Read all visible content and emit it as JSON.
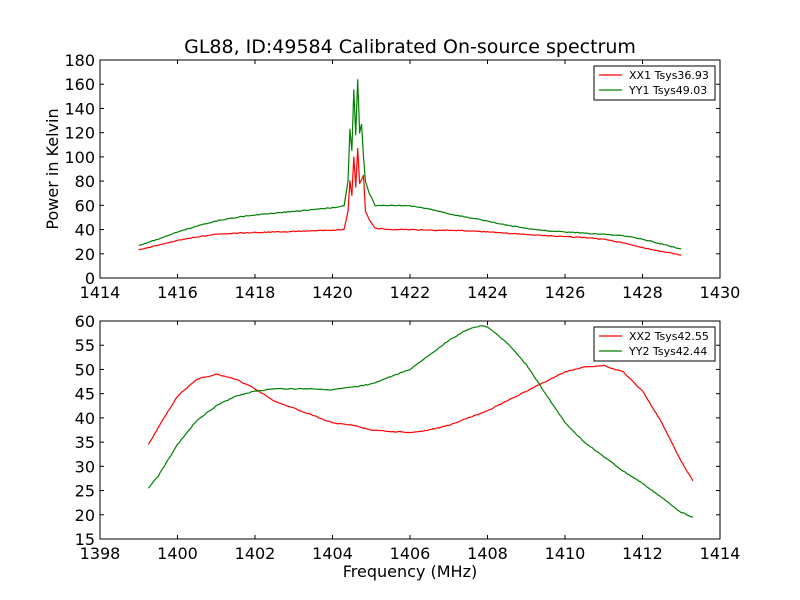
{
  "chart_data": [
    {
      "type": "line",
      "title": "GL88, ID:49584 Calibrated On-source spectrum",
      "xlabel": "",
      "ylabel": "Power in Kelvin",
      "xlim": [
        1414,
        1430
      ],
      "ylim": [
        0,
        180
      ],
      "xticks": [
        "1414",
        "1416",
        "1418",
        "1420",
        "1422",
        "1424",
        "1426",
        "1428",
        "1430"
      ],
      "yticks": [
        "0",
        "20",
        "40",
        "60",
        "80",
        "100",
        "120",
        "140",
        "160",
        "180"
      ],
      "grid": false,
      "legend_position": "top-right",
      "series": [
        {
          "name": "XX1 Tsys36.93",
          "color": "#ff0000",
          "points": [
            [
              1415.0,
              23
            ],
            [
              1415.5,
              27
            ],
            [
              1416.0,
              31
            ],
            [
              1416.5,
              34
            ],
            [
              1417.0,
              36
            ],
            [
              1417.5,
              37
            ],
            [
              1418.0,
              37.5
            ],
            [
              1418.5,
              38
            ],
            [
              1419.0,
              38.5
            ],
            [
              1419.5,
              39
            ],
            [
              1420.0,
              39.5
            ],
            [
              1420.3,
              40
            ],
            [
              1420.4,
              55
            ],
            [
              1420.45,
              80
            ],
            [
              1420.5,
              68
            ],
            [
              1420.55,
              100
            ],
            [
              1420.6,
              75
            ],
            [
              1420.65,
              107
            ],
            [
              1420.7,
              78
            ],
            [
              1420.8,
              85
            ],
            [
              1420.85,
              55
            ],
            [
              1420.95,
              48
            ],
            [
              1421.1,
              41
            ],
            [
              1421.5,
              40
            ],
            [
              1422.0,
              40
            ],
            [
              1422.5,
              39.5
            ],
            [
              1423.0,
              39.5
            ],
            [
              1423.5,
              39
            ],
            [
              1424.0,
              38
            ],
            [
              1424.5,
              37
            ],
            [
              1425.0,
              36
            ],
            [
              1425.5,
              35
            ],
            [
              1426.0,
              34
            ],
            [
              1426.5,
              33.5
            ],
            [
              1427.0,
              32
            ],
            [
              1427.5,
              29
            ],
            [
              1428.0,
              25
            ],
            [
              1428.5,
              22
            ],
            [
              1429.0,
              19
            ]
          ]
        },
        {
          "name": "YY1 Tsys49.03",
          "color": "#008000",
          "points": [
            [
              1415.0,
              27
            ],
            [
              1415.5,
              32
            ],
            [
              1416.0,
              38
            ],
            [
              1416.5,
              43
            ],
            [
              1417.0,
              47
            ],
            [
              1417.5,
              50
            ],
            [
              1418.0,
              52
            ],
            [
              1418.5,
              53.5
            ],
            [
              1419.0,
              55
            ],
            [
              1419.5,
              56.5
            ],
            [
              1420.0,
              58
            ],
            [
              1420.3,
              59.5
            ],
            [
              1420.4,
              80
            ],
            [
              1420.45,
              123
            ],
            [
              1420.5,
              105
            ],
            [
              1420.55,
              155
            ],
            [
              1420.6,
              118
            ],
            [
              1420.65,
              164
            ],
            [
              1420.7,
              120
            ],
            [
              1420.75,
              127
            ],
            [
              1420.8,
              100
            ],
            [
              1420.85,
              80
            ],
            [
              1420.95,
              70
            ],
            [
              1421.1,
              60
            ],
            [
              1421.5,
              60
            ],
            [
              1422.0,
              59.5
            ],
            [
              1422.5,
              57
            ],
            [
              1423.0,
              53
            ],
            [
              1423.5,
              50
            ],
            [
              1424.0,
              47
            ],
            [
              1424.5,
              43.5
            ],
            [
              1425.0,
              41
            ],
            [
              1425.5,
              39
            ],
            [
              1426.0,
              38
            ],
            [
              1426.5,
              37
            ],
            [
              1427.0,
              36
            ],
            [
              1427.5,
              35
            ],
            [
              1428.0,
              32
            ],
            [
              1428.5,
              28
            ],
            [
              1429.0,
              24
            ]
          ]
        }
      ]
    },
    {
      "type": "line",
      "title": "",
      "xlabel": "Frequency (MHz)",
      "ylabel": "",
      "xlim": [
        1398,
        1414
      ],
      "ylim": [
        15,
        60
      ],
      "xticks": [
        "1398",
        "1400",
        "1402",
        "1404",
        "1406",
        "1408",
        "1410",
        "1412",
        "1414"
      ],
      "yticks": [
        "15",
        "20",
        "25",
        "30",
        "35",
        "40",
        "45",
        "50",
        "55",
        "60"
      ],
      "grid": false,
      "legend_position": "top-right",
      "series": [
        {
          "name": "XX2 Tsys42.55",
          "color": "#ff0000",
          "points": [
            [
              1399.25,
              34.5
            ],
            [
              1399.5,
              38
            ],
            [
              1400.0,
              44.5
            ],
            [
              1400.5,
              48
            ],
            [
              1401.0,
              49
            ],
            [
              1401.5,
              48
            ],
            [
              1402.0,
              46
            ],
            [
              1402.5,
              43.5
            ],
            [
              1403.0,
              42
            ],
            [
              1403.5,
              40.5
            ],
            [
              1404.0,
              39
            ],
            [
              1404.5,
              38.5
            ],
            [
              1405.0,
              37.5
            ],
            [
              1405.5,
              37.2
            ],
            [
              1406.0,
              37
            ],
            [
              1406.5,
              37.5
            ],
            [
              1407.0,
              38.5
            ],
            [
              1407.5,
              40
            ],
            [
              1408.0,
              41.5
            ],
            [
              1408.5,
              43.5
            ],
            [
              1409.0,
              45.5
            ],
            [
              1409.5,
              47.5
            ],
            [
              1410.0,
              49.5
            ],
            [
              1410.5,
              50.5
            ],
            [
              1411.0,
              50.8
            ],
            [
              1411.5,
              49.5
            ],
            [
              1412.0,
              45.5
            ],
            [
              1412.5,
              39
            ],
            [
              1413.0,
              31
            ],
            [
              1413.3,
              27
            ]
          ]
        },
        {
          "name": "YY2 Tsys42.44",
          "color": "#008000",
          "points": [
            [
              1399.25,
              25.5
            ],
            [
              1399.5,
              28
            ],
            [
              1400.0,
              34.5
            ],
            [
              1400.5,
              39.5
            ],
            [
              1401.0,
              42.5
            ],
            [
              1401.5,
              44.5
            ],
            [
              1402.0,
              45.5
            ],
            [
              1402.5,
              46
            ],
            [
              1403.0,
              46
            ],
            [
              1403.5,
              46
            ],
            [
              1404.0,
              45.8
            ],
            [
              1404.5,
              46.3
            ],
            [
              1405.0,
              47
            ],
            [
              1405.5,
              48.5
            ],
            [
              1406.0,
              50
            ],
            [
              1406.5,
              53
            ],
            [
              1407.0,
              56
            ],
            [
              1407.5,
              58.3
            ],
            [
              1407.8,
              59
            ],
            [
              1408.0,
              58.8
            ],
            [
              1408.5,
              55.5
            ],
            [
              1409.0,
              51
            ],
            [
              1409.5,
              45
            ],
            [
              1410.0,
              39
            ],
            [
              1410.5,
              35
            ],
            [
              1411.0,
              32
            ],
            [
              1411.5,
              29
            ],
            [
              1412.0,
              26.5
            ],
            [
              1412.5,
              23.5
            ],
            [
              1413.0,
              20.5
            ],
            [
              1413.3,
              19.5
            ]
          ]
        }
      ]
    }
  ]
}
